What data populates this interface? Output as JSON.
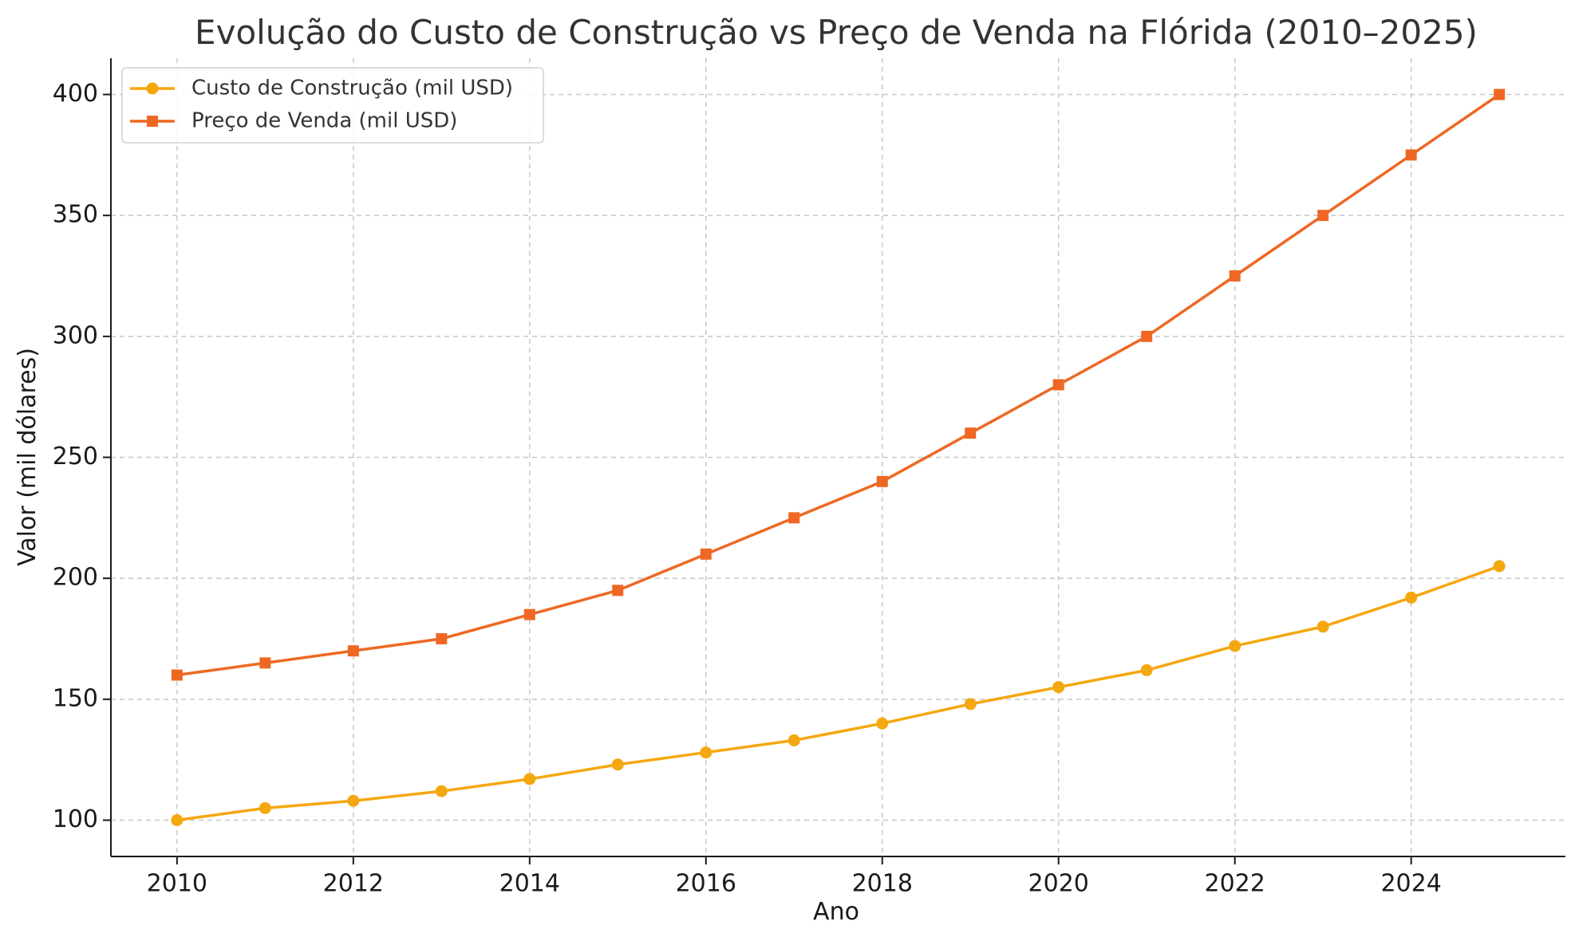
{
  "chart_data": {
    "type": "line",
    "title": "Evolução do Custo de Construção vs Preço de Venda na Flórida (2010–2025)",
    "xlabel": "Ano",
    "ylabel": "Valor (mil dólares)",
    "x": [
      2010,
      2011,
      2012,
      2013,
      2014,
      2015,
      2016,
      2017,
      2018,
      2019,
      2020,
      2021,
      2022,
      2023,
      2024,
      2025
    ],
    "xlim": [
      2009.25,
      2025.75
    ],
    "ylim": [
      85,
      415
    ],
    "xticks": [
      2010,
      2012,
      2014,
      2016,
      2018,
      2020,
      2022,
      2024
    ],
    "yticks": [
      100,
      150,
      200,
      250,
      300,
      350,
      400
    ],
    "grid": true,
    "legend_position": "top-left",
    "series": [
      {
        "name": "Custo de Construção (mil USD)",
        "color": "#f5a70f",
        "marker": "circle",
        "values": [
          100,
          105,
          108,
          112,
          117,
          123,
          128,
          133,
          140,
          148,
          155,
          162,
          172,
          180,
          192,
          205
        ]
      },
      {
        "name": "Preço de Venda (mil USD)",
        "color": "#ee6823",
        "marker": "square",
        "values": [
          160,
          165,
          170,
          175,
          185,
          195,
          210,
          225,
          240,
          260,
          280,
          300,
          325,
          350,
          375,
          400
        ]
      }
    ]
  }
}
